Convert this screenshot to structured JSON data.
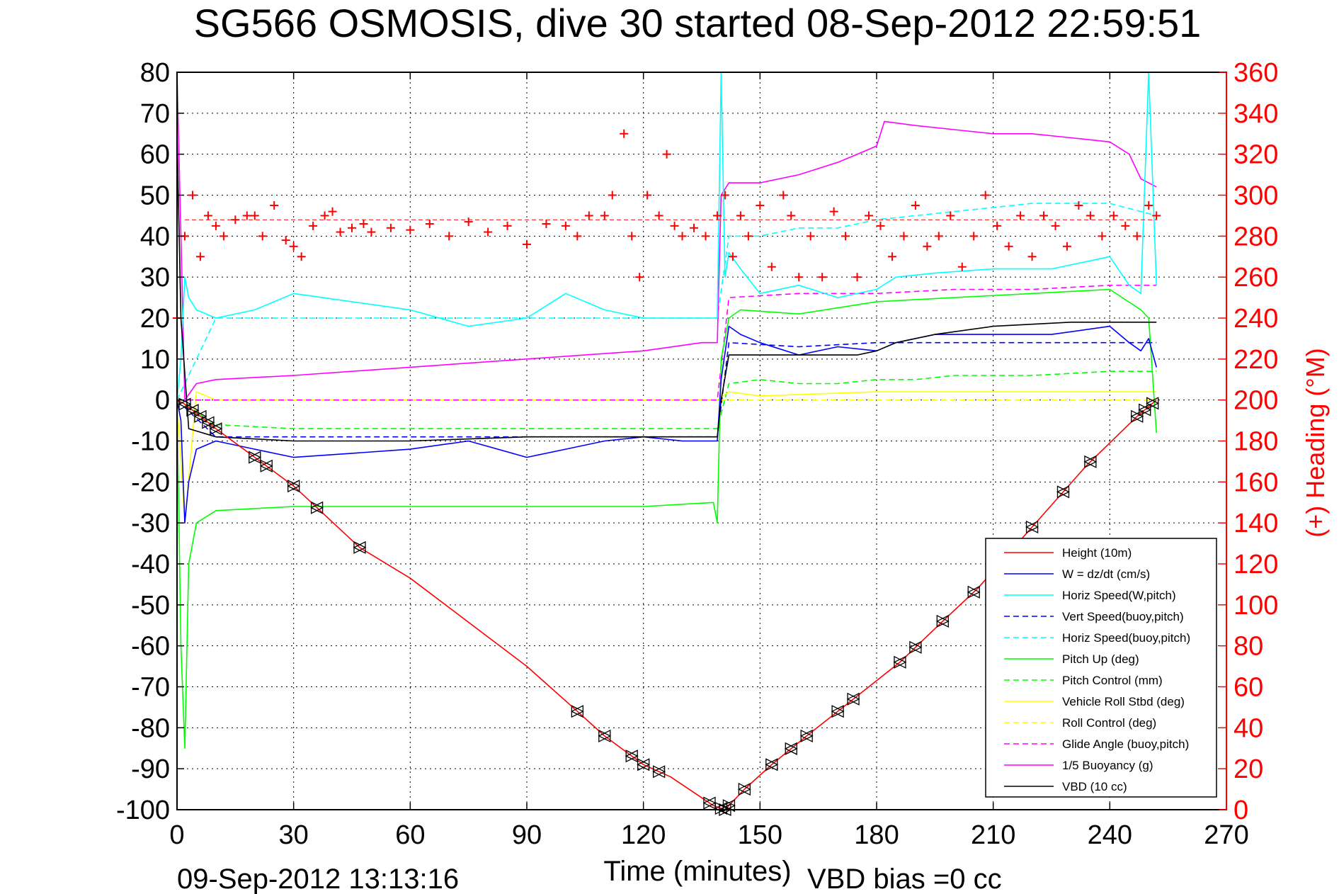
{
  "title": "SG566 OSMOSIS, dive 30 started 08-Sep-2012 22:59:51",
  "footer_left": "09-Sep-2012 13:13:16",
  "footer_right": "VBD bias =0 cc",
  "chart_data": {
    "type": "line",
    "xlabel": "Time (minutes)",
    "ylabel": "",
    "y2label": "(+) Heading (°M)",
    "xlim": [
      0,
      270
    ],
    "ylim": [
      -100,
      80
    ],
    "y2lim": [
      0,
      360
    ],
    "x_ticks": [
      0,
      30,
      60,
      90,
      120,
      150,
      180,
      210,
      240,
      270
    ],
    "y_ticks": [
      80,
      70,
      60,
      50,
      40,
      30,
      20,
      10,
      0,
      -10,
      -20,
      -30,
      -40,
      -50,
      -60,
      -70,
      -80,
      -90,
      -100
    ],
    "y2_ticks": [
      360,
      340,
      320,
      300,
      280,
      260,
      240,
      220,
      200,
      180,
      160,
      140,
      120,
      100,
      80,
      60,
      40,
      20,
      0
    ],
    "grid": true,
    "legend_position": "bottom-right",
    "colors": {
      "heading": "#ff0000",
      "right_axis": "#ff0000"
    },
    "series": [
      {
        "name": "Height (10m)",
        "color": "#ff0000",
        "dash": "",
        "x": [
          0,
          2,
          10,
          20,
          30,
          47,
          60,
          90,
          103,
          110,
          120,
          127,
          138,
          141,
          146,
          153,
          162,
          174,
          186,
          197,
          206,
          220,
          234,
          247,
          252
        ],
        "y": [
          0,
          -1,
          -7,
          -14,
          -21,
          -36,
          -43.5,
          -65,
          -76,
          -82,
          -89,
          -92,
          -99,
          -100,
          -95,
          -89,
          -82,
          -73,
          -64,
          -54,
          -46,
          -31,
          -16,
          -4,
          0
        ]
      },
      {
        "name": "W = dz/dt (cm/s)",
        "color": "#0000ff",
        "dash": "",
        "x": [
          0,
          1,
          2,
          3,
          5,
          10,
          20,
          30,
          45,
          60,
          75,
          90,
          100,
          110,
          120,
          130,
          139,
          140,
          142,
          145,
          150,
          160,
          170,
          180,
          185,
          195,
          210,
          225,
          240,
          245,
          248,
          250,
          252
        ],
        "y": [
          0,
          -5,
          -30,
          -20,
          -12,
          -10,
          -12,
          -14,
          -13,
          -12,
          -10,
          -14,
          -12,
          -10,
          -9,
          -10,
          -10,
          5,
          18,
          16,
          14,
          11,
          13,
          12,
          14,
          16,
          16,
          16,
          18,
          14,
          12,
          15,
          8
        ]
      },
      {
        "name": "Horiz Speed(W,pitch)",
        "color": "#00ffff",
        "dash": "",
        "x": [
          0,
          1,
          2,
          3,
          5,
          10,
          20,
          30,
          45,
          60,
          75,
          90,
          100,
          110,
          120,
          130,
          139,
          140,
          141,
          142,
          145,
          150,
          160,
          170,
          180,
          185,
          195,
          210,
          225,
          240,
          245,
          248,
          250,
          252
        ],
        "y": [
          0,
          10,
          30,
          25,
          22,
          20,
          22,
          26,
          24,
          22,
          18,
          20,
          26,
          22,
          20,
          20,
          20,
          80,
          30,
          36,
          32,
          26,
          28,
          25,
          27,
          30,
          31,
          32,
          32,
          35,
          28,
          26,
          80,
          28
        ]
      },
      {
        "name": "Vert Speed(buoy,pitch)",
        "color": "#0000ff",
        "dash": "8,5",
        "x": [
          0,
          10,
          30,
          60,
          90,
          120,
          139,
          142,
          160,
          180,
          200,
          220,
          240,
          252
        ],
        "y": [
          0,
          -9,
          -9,
          -9,
          -9,
          -9,
          -9,
          14,
          13,
          14,
          14,
          14,
          14,
          14
        ]
      },
      {
        "name": "Horiz Speed(buoy,pitch)",
        "color": "#00ffff",
        "dash": "8,5",
        "x": [
          0,
          10,
          30,
          60,
          90,
          120,
          139,
          142,
          150,
          160,
          170,
          180,
          190,
          200,
          210,
          220,
          240,
          252
        ],
        "y": [
          0,
          20,
          20,
          20,
          20,
          20,
          20,
          40,
          40,
          42,
          42,
          44,
          45,
          46,
          47,
          48,
          48,
          45
        ]
      },
      {
        "name": "Pitch Up (deg)",
        "color": "#00ff00",
        "dash": "",
        "x": [
          0,
          1,
          2,
          3,
          5,
          10,
          30,
          60,
          90,
          120,
          138,
          139,
          140,
          142,
          145,
          160,
          180,
          200,
          220,
          240,
          248,
          250,
          252
        ],
        "y": [
          0,
          -60,
          -85,
          -40,
          -30,
          -27,
          -26,
          -26,
          -26,
          -26,
          -25,
          -30,
          10,
          20,
          22,
          21,
          24,
          25,
          26,
          27,
          22,
          20,
          -8
        ]
      },
      {
        "name": "Pitch Control (mm)",
        "color": "#00ff00",
        "dash": "8,5",
        "x": [
          0,
          10,
          30,
          60,
          90,
          120,
          139,
          142,
          150,
          160,
          170,
          180,
          190,
          200,
          220,
          240,
          252
        ],
        "y": [
          0,
          -6,
          -7,
          -7,
          -7,
          -7,
          -7,
          4,
          5,
          4,
          4,
          5,
          5,
          6,
          6,
          7,
          7
        ]
      },
      {
        "name": "Vehicle Roll Stbd (deg)",
        "color": "#ffff00",
        "dash": "",
        "x": [
          0,
          2,
          5,
          10,
          20,
          30,
          60,
          90,
          120,
          139,
          142,
          150,
          180,
          210,
          240,
          252
        ],
        "y": [
          0,
          -30,
          2,
          0,
          0,
          0,
          0,
          0,
          0,
          0,
          2,
          1,
          2,
          2,
          2,
          2
        ]
      },
      {
        "name": "Roll Control (deg)",
        "color": "#ffff00",
        "dash": "8,5",
        "x": [
          0,
          5,
          10,
          30,
          60,
          90,
          120,
          139,
          142,
          150,
          180,
          210,
          240,
          252
        ],
        "y": [
          0,
          0,
          0,
          0,
          0,
          0,
          0,
          0,
          0,
          0,
          0,
          0,
          0,
          0
        ]
      },
      {
        "name": "Glide Angle (buoy,pitch)",
        "color": "#ff00ff",
        "dash": "8,5",
        "x": [
          0,
          10,
          30,
          60,
          90,
          120,
          139,
          142,
          160,
          180,
          200,
          220,
          240,
          252
        ],
        "y": [
          0,
          0,
          0,
          0,
          0,
          0,
          0,
          25,
          26,
          26,
          27,
          27,
          28,
          28
        ]
      },
      {
        "name": "1/5 Buoyancy (g)",
        "color": "#ff00ff",
        "dash": "",
        "x": [
          0,
          1,
          2,
          5,
          10,
          30,
          60,
          90,
          120,
          135,
          139,
          140,
          142,
          150,
          160,
          170,
          175,
          180,
          182,
          190,
          200,
          210,
          220,
          230,
          240,
          245,
          248,
          252
        ],
        "y": [
          80,
          40,
          0,
          4,
          5,
          6,
          8,
          10,
          12,
          14,
          14,
          50,
          53,
          53,
          55,
          58,
          60,
          62,
          68,
          67,
          66,
          65,
          65,
          64,
          63,
          60,
          54,
          52
        ]
      },
      {
        "name": "VBD (10 cc)",
        "color": "#000000",
        "dash": "",
        "x": [
          0,
          1,
          3,
          10,
          30,
          60,
          90,
          120,
          139,
          140,
          142,
          150,
          165,
          175,
          180,
          185,
          195,
          210,
          230,
          240,
          252
        ],
        "y": [
          65,
          20,
          -7,
          -9,
          -10,
          -10,
          -9,
          -9,
          -9,
          0,
          11,
          11,
          11,
          11,
          12,
          14,
          16,
          18,
          19,
          19,
          19
        ]
      }
    ],
    "heading_points": {
      "name": "(+) Heading",
      "marker": "+",
      "color": "#ff0000",
      "axis": "right",
      "x": [
        0,
        2,
        4,
        6,
        8,
        10,
        12,
        15,
        18,
        20,
        22,
        25,
        28,
        30,
        32,
        35,
        38,
        40,
        42,
        45,
        48,
        50,
        55,
        60,
        65,
        70,
        75,
        80,
        85,
        90,
        95,
        100,
        103,
        106,
        110,
        112,
        115,
        117,
        119,
        121,
        124,
        126,
        128,
        130,
        133,
        136,
        139,
        141,
        143,
        145,
        147,
        150,
        153,
        156,
        158,
        160,
        163,
        166,
        169,
        172,
        175,
        178,
        181,
        184,
        187,
        190,
        193,
        196,
        199,
        202,
        205,
        208,
        211,
        214,
        217,
        220,
        223,
        226,
        229,
        232,
        235,
        238,
        241,
        244,
        247,
        250,
        252
      ],
      "y": [
        240,
        280,
        300,
        270,
        290,
        285,
        280,
        288,
        290,
        290,
        280,
        295,
        278,
        275,
        270,
        285,
        290,
        292,
        282,
        284,
        286,
        282,
        284,
        283,
        286,
        280,
        287,
        282,
        285,
        276,
        286,
        285,
        280,
        290,
        290,
        300,
        330,
        280,
        260,
        300,
        290,
        320,
        285,
        280,
        284,
        280,
        290,
        300,
        270,
        290,
        280,
        295,
        265,
        300,
        290,
        260,
        280,
        260,
        292,
        280,
        260,
        290,
        285,
        270,
        280,
        295,
        275,
        280,
        290,
        265,
        280,
        300,
        285,
        275,
        290,
        270,
        290,
        285,
        275,
        295,
        290,
        280,
        290,
        285,
        280,
        295,
        290
      ]
    }
  }
}
